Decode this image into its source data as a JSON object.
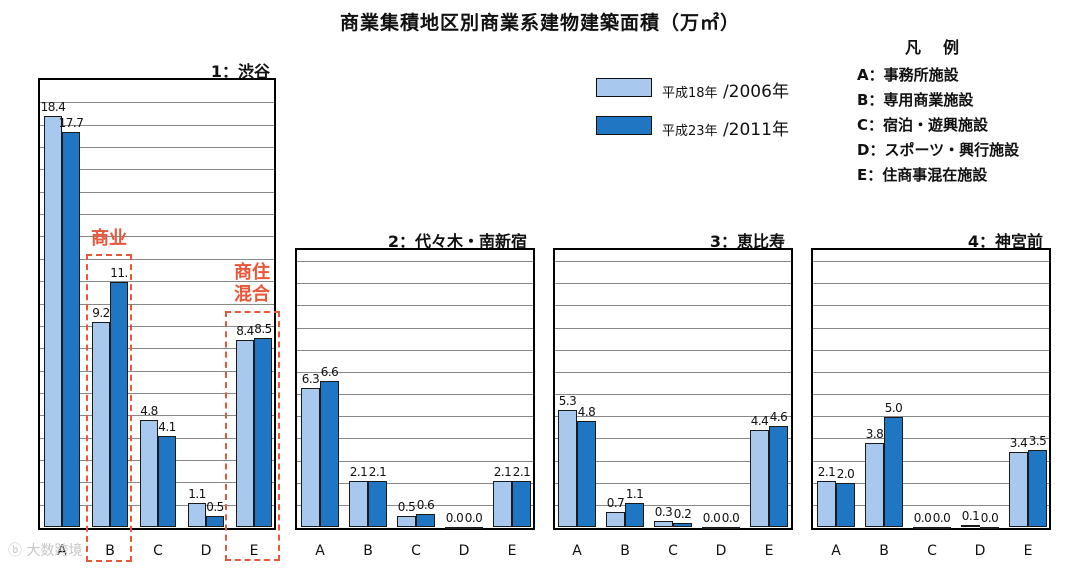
{
  "title": "商業集積地区別商業系建物建築面積（万㎡）",
  "legend": {
    "series": [
      {
        "prefix": "平成18年",
        "suffix": " /2006年",
        "color": "#a9c8ee"
      },
      {
        "prefix": "平成23年",
        "suffix": " /2011年",
        "color": "#1f77c4"
      }
    ]
  },
  "key": {
    "title": "凡例",
    "items": [
      "A：事務所施設",
      "B：専用商業施設",
      "C：宿泊・遊興施設",
      "D：スポーツ・興行施設",
      "E：住商事混在施設"
    ]
  },
  "annotations": {
    "commerce": "商业",
    "mixed_line1": "商住",
    "mixed_line2": "混合"
  },
  "watermark": "大数跨境",
  "chart_data": [
    {
      "type": "bar",
      "title": "1：渋谷",
      "categories": [
        "A",
        "B",
        "C",
        "D",
        "E"
      ],
      "series": [
        {
          "name": "平成18年 /2006年",
          "values": [
            18.4,
            9.2,
            4.8,
            1.1,
            8.4
          ]
        },
        {
          "name": "平成23年 /2011年",
          "values": [
            17.7,
            11.0,
            4.1,
            0.5,
            8.5
          ]
        }
      ],
      "value_labels": [
        [
          "18.4",
          "9.2",
          "4.8",
          "1.1",
          "8.4"
        ],
        [
          "17.7",
          "11.",
          "4.1",
          "0.5",
          "8.5"
        ]
      ],
      "ylim": [
        0,
        20
      ]
    },
    {
      "type": "bar",
      "title": "2：代々木・南新宿",
      "categories": [
        "A",
        "B",
        "C",
        "D",
        "E"
      ],
      "series": [
        {
          "name": "平成18年 /2006年",
          "values": [
            6.3,
            2.1,
            0.5,
            0.0,
            2.1
          ]
        },
        {
          "name": "平成23年 /2011年",
          "values": [
            6.6,
            2.1,
            0.6,
            0.0,
            2.1
          ]
        }
      ],
      "value_labels": [
        [
          "6.3",
          "2.1",
          "0.5",
          "0.0",
          "2.1"
        ],
        [
          "6.6",
          "2.1",
          "0.6",
          "0.0",
          "2.1"
        ]
      ],
      "ylim": [
        0,
        12.5
      ]
    },
    {
      "type": "bar",
      "title": "3：恵比寿",
      "categories": [
        "A",
        "B",
        "C",
        "D",
        "E"
      ],
      "series": [
        {
          "name": "平成18年 /2006年",
          "values": [
            5.3,
            0.7,
            0.3,
            0.0,
            4.4
          ]
        },
        {
          "name": "平成23年 /2011年",
          "values": [
            4.8,
            1.1,
            0.2,
            0.0,
            4.6
          ]
        }
      ],
      "value_labels": [
        [
          "5.3",
          "0.7",
          "0.3",
          "0.0",
          "4.4"
        ],
        [
          "4.8",
          "1.1",
          "0.2",
          "0.0",
          "4.6"
        ]
      ],
      "ylim": [
        0,
        12.5
      ]
    },
    {
      "type": "bar",
      "title": "4：神宮前",
      "categories": [
        "A",
        "B",
        "C",
        "D",
        "E"
      ],
      "series": [
        {
          "name": "平成18年 /2006年",
          "values": [
            2.1,
            3.8,
            0.0,
            0.1,
            3.4
          ]
        },
        {
          "name": "平成23年 /2011年",
          "values": [
            2.0,
            5.0,
            0.0,
            0.0,
            3.5
          ]
        }
      ],
      "value_labels": [
        [
          "2.1",
          "3.8",
          "0.0",
          "0.1",
          "3.4"
        ],
        [
          "2.0",
          "5.0",
          "0.0",
          "0.0",
          "3.5"
        ]
      ],
      "ylim": [
        0,
        12.5
      ]
    }
  ]
}
